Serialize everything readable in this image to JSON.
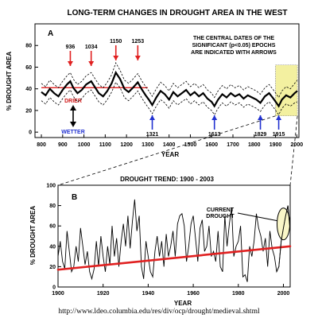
{
  "footer_url": "http://www.ldeo.columbia.edu/res/div/ocp/drought/medieval.shtml",
  "chart_data": [
    {
      "type": "line",
      "panel_label": "A",
      "title": "LONG-TERM CHANGES IN DROUGHT AREA IN THE WEST",
      "xlabel": "YEAR",
      "ylabel": "% DROUGHT AREA",
      "xlim": [
        770,
        2010
      ],
      "ylim": [
        -5,
        100
      ],
      "xticks": [
        800,
        900,
        1000,
        1100,
        1200,
        1300,
        1400,
        1500,
        1600,
        1700,
        1800,
        1900,
        2000
      ],
      "yticks": [
        0,
        20,
        40,
        60,
        80
      ],
      "note_lines": [
        "THE CENTRAL DATES OF THE",
        "SIGNIFICANT (p<0.05) EPOCHS",
        "ARE INDICATED WITH ARROWS"
      ],
      "drier_label": "DRIER",
      "wetter_label": "WETTER",
      "mean_line": {
        "color": "#e02020",
        "x": [
          800,
          1300
        ],
        "y": 41
      },
      "highlight": {
        "x": [
          1900,
          2003
        ],
        "color": "#f3f0a0"
      },
      "drier_epochs": [
        {
          "label": "936",
          "year": 936
        },
        {
          "label": "1034",
          "year": 1034
        },
        {
          "label": "1150",
          "year": 1150
        },
        {
          "label": "1253",
          "year": 1253
        }
      ],
      "wetter_epochs": [
        {
          "label": "1321",
          "year": 1321
        },
        {
          "label": "1613",
          "year": 1613
        },
        {
          "label": "1829",
          "year": 1829
        },
        {
          "label": "1915",
          "year": 1915
        }
      ],
      "series": [
        {
          "style": "solid",
          "x": [
            800,
            820,
            840,
            860,
            880,
            900,
            920,
            936,
            950,
            970,
            990,
            1010,
            1034,
            1050,
            1070,
            1090,
            1110,
            1130,
            1150,
            1170,
            1190,
            1210,
            1230,
            1253,
            1270,
            1290,
            1305,
            1321,
            1340,
            1360,
            1380,
            1400,
            1420,
            1440,
            1460,
            1480,
            1500,
            1520,
            1540,
            1560,
            1580,
            1600,
            1613,
            1630,
            1650,
            1670,
            1690,
            1710,
            1730,
            1750,
            1770,
            1790,
            1810,
            1829,
            1850,
            1870,
            1890,
            1915,
            1930,
            1950,
            1970,
            1990,
            2003
          ],
          "y": [
            37,
            34,
            40,
            36,
            33,
            39,
            44,
            47,
            41,
            36,
            39,
            44,
            47,
            42,
            36,
            33,
            38,
            45,
            55,
            49,
            40,
            37,
            41,
            46,
            40,
            34,
            30,
            25,
            32,
            38,
            35,
            30,
            37,
            33,
            36,
            39,
            34,
            37,
            33,
            36,
            31,
            28,
            24,
            30,
            35,
            32,
            36,
            33,
            35,
            31,
            34,
            32,
            30,
            27,
            33,
            36,
            31,
            24,
            30,
            34,
            32,
            36,
            38
          ]
        },
        {
          "style": "dashed",
          "x": [
            800,
            820,
            840,
            860,
            880,
            900,
            920,
            936,
            950,
            970,
            990,
            1010,
            1034,
            1050,
            1070,
            1090,
            1110,
            1130,
            1150,
            1170,
            1190,
            1210,
            1230,
            1253,
            1270,
            1290,
            1305,
            1321,
            1340,
            1360,
            1380,
            1400,
            1420,
            1440,
            1460,
            1480,
            1500,
            1520,
            1540,
            1560,
            1580,
            1600,
            1613,
            1630,
            1650,
            1670,
            1690,
            1710,
            1730,
            1750,
            1770,
            1790,
            1810,
            1829,
            1850,
            1870,
            1890,
            1915,
            1930,
            1950,
            1970,
            1990,
            2003
          ],
          "y": [
            45,
            42,
            48,
            44,
            41,
            47,
            52,
            55,
            49,
            44,
            47,
            52,
            55,
            50,
            44,
            41,
            46,
            53,
            64,
            57,
            48,
            45,
            49,
            54,
            48,
            42,
            38,
            33,
            40,
            46,
            43,
            38,
            45,
            41,
            44,
            47,
            42,
            45,
            41,
            44,
            39,
            36,
            32,
            38,
            43,
            40,
            44,
            41,
            43,
            39,
            42,
            40,
            38,
            35,
            41,
            44,
            39,
            32,
            38,
            42,
            40,
            45,
            48
          ]
        },
        {
          "style": "dashed",
          "x": [
            800,
            820,
            840,
            860,
            880,
            900,
            920,
            936,
            950,
            970,
            990,
            1010,
            1034,
            1050,
            1070,
            1090,
            1110,
            1130,
            1150,
            1170,
            1190,
            1210,
            1230,
            1253,
            1270,
            1290,
            1305,
            1321,
            1340,
            1360,
            1380,
            1400,
            1420,
            1440,
            1460,
            1480,
            1500,
            1520,
            1540,
            1560,
            1580,
            1600,
            1613,
            1630,
            1650,
            1670,
            1690,
            1710,
            1730,
            1750,
            1770,
            1790,
            1810,
            1829,
            1850,
            1870,
            1890,
            1915,
            1930,
            1950,
            1970,
            1990,
            2003
          ],
          "y": [
            29,
            26,
            32,
            28,
            25,
            31,
            36,
            39,
            33,
            28,
            31,
            36,
            39,
            34,
            28,
            25,
            30,
            37,
            46,
            41,
            32,
            29,
            33,
            38,
            32,
            26,
            22,
            17,
            24,
            30,
            27,
            22,
            29,
            25,
            28,
            31,
            26,
            29,
            25,
            28,
            23,
            20,
            16,
            22,
            27,
            24,
            28,
            25,
            27,
            23,
            26,
            24,
            22,
            19,
            25,
            28,
            23,
            16,
            22,
            26,
            24,
            27,
            28
          ]
        }
      ]
    },
    {
      "type": "line",
      "panel_label": "B",
      "title": "DROUGHT TREND:  1900 - 2003",
      "xlabel": "YEAR",
      "ylabel": "% DROUGHT AREA",
      "xlim": [
        1900,
        2003
      ],
      "ylim": [
        0,
        100
      ],
      "xticks": [
        1900,
        1920,
        1940,
        1960,
        1980,
        2000
      ],
      "yticks": [
        0,
        20,
        40,
        60,
        80,
        100
      ],
      "annotation_lines": [
        "CURRENT",
        "DROUGHT"
      ],
      "trend": {
        "color": "#e02020",
        "x": [
          1900,
          2003
        ],
        "y": [
          17,
          40
        ]
      },
      "series": [
        {
          "x": [
            1900,
            1901,
            1902,
            1903,
            1904,
            1905,
            1906,
            1907,
            1908,
            1909,
            1910,
            1911,
            1912,
            1913,
            1914,
            1915,
            1916,
            1917,
            1918,
            1919,
            1920,
            1921,
            1922,
            1923,
            1924,
            1925,
            1926,
            1927,
            1928,
            1929,
            1930,
            1931,
            1932,
            1933,
            1934,
            1935,
            1936,
            1937,
            1938,
            1939,
            1940,
            1941,
            1942,
            1943,
            1944,
            1945,
            1946,
            1947,
            1948,
            1949,
            1950,
            1951,
            1952,
            1953,
            1954,
            1955,
            1956,
            1957,
            1958,
            1959,
            1960,
            1961,
            1962,
            1963,
            1964,
            1965,
            1966,
            1967,
            1968,
            1969,
            1970,
            1971,
            1972,
            1973,
            1974,
            1975,
            1976,
            1977,
            1978,
            1979,
            1980,
            1981,
            1982,
            1983,
            1984,
            1985,
            1986,
            1987,
            1988,
            1989,
            1990,
            1991,
            1992,
            1993,
            1994,
            1995,
            1996,
            1997,
            1998,
            1999,
            2000,
            2001,
            2002,
            2003
          ],
          "y": [
            30,
            45,
            25,
            18,
            55,
            35,
            15,
            20,
            40,
            25,
            58,
            40,
            22,
            35,
            15,
            8,
            18,
            45,
            20,
            50,
            30,
            15,
            40,
            22,
            60,
            30,
            48,
            20,
            45,
            62,
            40,
            70,
            38,
            65,
            86,
            55,
            70,
            20,
            8,
            45,
            30,
            15,
            10,
            35,
            50,
            30,
            45,
            20,
            52,
            30,
            40,
            55,
            30,
            62,
            70,
            72,
            60,
            25,
            40,
            62,
            70,
            48,
            25,
            58,
            66,
            35,
            40,
            60,
            30,
            35,
            25,
            55,
            20,
            15,
            70,
            40,
            62,
            78,
            30,
            40,
            45,
            60,
            10,
            12,
            5,
            40,
            30,
            45,
            72,
            58,
            50,
            35,
            48,
            20,
            55,
            38,
            30,
            15,
            20,
            45,
            58,
            70,
            80,
            55
          ]
        }
      ]
    }
  ]
}
